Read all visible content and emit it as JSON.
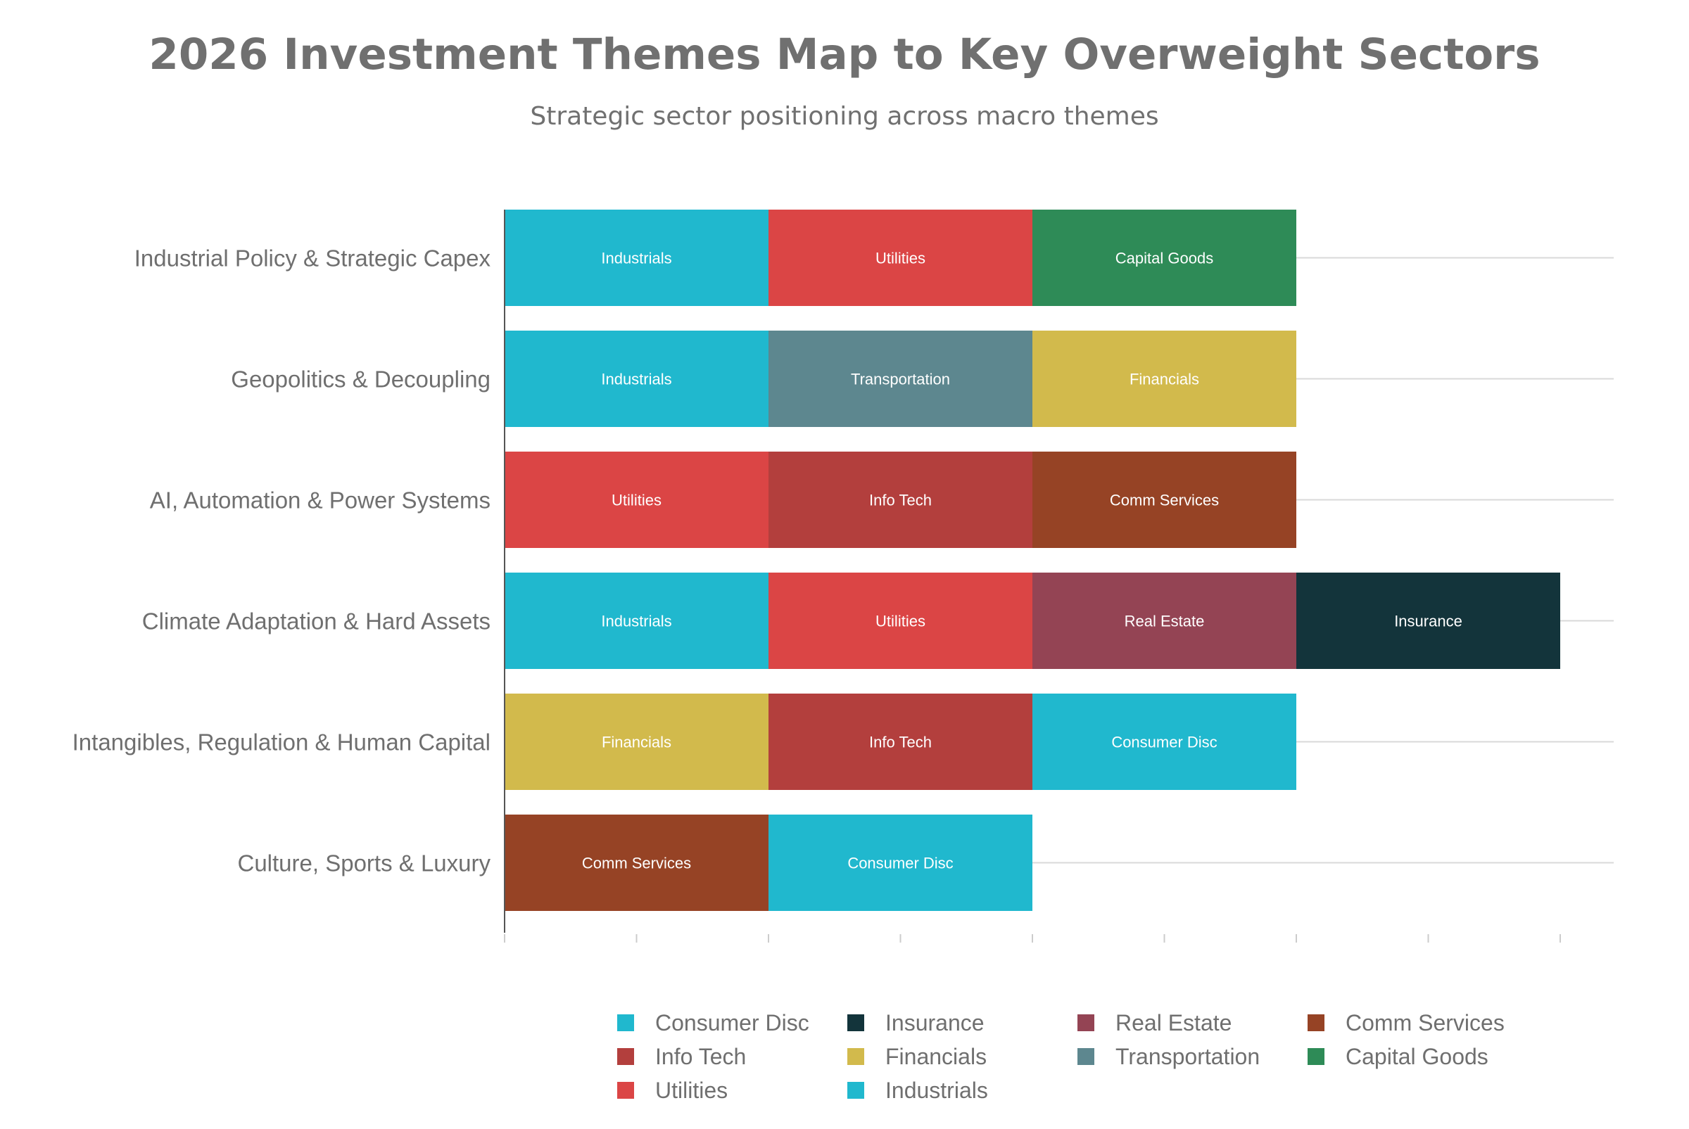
{
  "chart_data": {
    "type": "bar",
    "orientation": "horizontal",
    "stacked": true,
    "title": "2026 Investment Themes Map to Key Overweight Sectors",
    "subtitle": "Strategic sector positioning across macro themes",
    "xlabel": "",
    "ylabel": "",
    "xlim": [
      0,
      4.2
    ],
    "grid": true,
    "legend_position": "bottom",
    "categories": [
      "Industrial Policy & Strategic Capex",
      "Geopolitics & Decoupling",
      "AI, Automation & Power Systems",
      "Climate Adaptation & Hard Assets",
      "Intangibles, Regulation & Human Capital",
      "Culture, Sports & Luxury"
    ],
    "rows": [
      {
        "theme": "Industrial Policy & Strategic Capex",
        "segments": [
          {
            "sector": "Industrials",
            "value": 1
          },
          {
            "sector": "Utilities",
            "value": 1
          },
          {
            "sector": "Capital Goods",
            "value": 1
          }
        ]
      },
      {
        "theme": "Geopolitics & Decoupling",
        "segments": [
          {
            "sector": "Industrials",
            "value": 1
          },
          {
            "sector": "Transportation",
            "value": 1
          },
          {
            "sector": "Financials",
            "value": 1
          }
        ]
      },
      {
        "theme": "AI, Automation & Power Systems",
        "segments": [
          {
            "sector": "Utilities",
            "value": 1
          },
          {
            "sector": "Info Tech",
            "value": 1
          },
          {
            "sector": "Comm Services",
            "value": 1
          }
        ]
      },
      {
        "theme": "Climate Adaptation & Hard Assets",
        "segments": [
          {
            "sector": "Industrials",
            "value": 1
          },
          {
            "sector": "Utilities",
            "value": 1
          },
          {
            "sector": "Real Estate",
            "value": 1
          },
          {
            "sector": "Insurance",
            "value": 1
          }
        ]
      },
      {
        "theme": "Intangibles, Regulation & Human Capital",
        "segments": [
          {
            "sector": "Financials",
            "value": 1
          },
          {
            "sector": "Info Tech",
            "value": 1
          },
          {
            "sector": "Consumer Disc",
            "value": 1
          }
        ]
      },
      {
        "theme": "Culture, Sports & Luxury",
        "segments": [
          {
            "sector": "Comm Services",
            "value": 1
          },
          {
            "sector": "Consumer Disc",
            "value": 1
          }
        ]
      }
    ],
    "legend": [
      {
        "name": "Consumer Disc",
        "color": "#20B8CE"
      },
      {
        "name": "Insurance",
        "color": "#13343B"
      },
      {
        "name": "Real Estate",
        "color": "#944454"
      },
      {
        "name": "Comm Services",
        "color": "#964325"
      },
      {
        "name": "Info Tech",
        "color": "#B33F3D"
      },
      {
        "name": "Financials",
        "color": "#D2BA4C"
      },
      {
        "name": "Transportation",
        "color": "#5D878F"
      },
      {
        "name": "Capital Goods",
        "color": "#2E8B57"
      },
      {
        "name": "Utilities",
        "color": "#DB4545"
      },
      {
        "name": "Industrials",
        "color": "#20B8CE"
      }
    ],
    "colors": {
      "Consumer Disc": "#20B8CE",
      "Insurance": "#13343B",
      "Real Estate": "#944454",
      "Comm Services": "#964325",
      "Info Tech": "#B33F3D",
      "Financials": "#D2BA4C",
      "Transportation": "#5D878F",
      "Capital Goods": "#2E8B57",
      "Utilities": "#DB4545",
      "Industrials": "#20B8CE"
    }
  }
}
